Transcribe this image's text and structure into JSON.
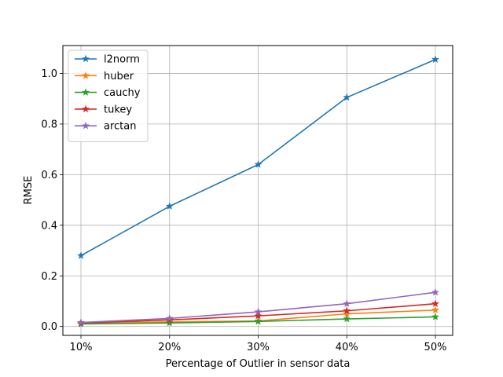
{
  "chart_data": {
    "type": "line",
    "title": "",
    "xlabel": "Percentage of Outlier in sensor data",
    "ylabel": "RMSE",
    "categories": [
      "10%",
      "20%",
      "30%",
      "40%",
      "50%"
    ],
    "ylim": [
      -0.035,
      1.11
    ],
    "yticks": [
      0.0,
      0.2,
      0.4,
      0.6,
      0.8,
      1.0
    ],
    "ytick_labels": [
      "0.0",
      "0.2",
      "0.4",
      "0.6",
      "0.8",
      "1.0"
    ],
    "grid": true,
    "legend_position": "top-left",
    "marker": "star",
    "series": [
      {
        "name": "l2norm",
        "color": "#1f77b4",
        "values": [
          0.28,
          0.475,
          0.64,
          0.905,
          1.055
        ]
      },
      {
        "name": "huber",
        "color": "#ff7f0e",
        "values": [
          0.015,
          0.018,
          0.022,
          0.05,
          0.065
        ]
      },
      {
        "name": "cauchy",
        "color": "#2ca02c",
        "values": [
          0.01,
          0.014,
          0.02,
          0.03,
          0.038
        ]
      },
      {
        "name": "tukey",
        "color": "#d62728",
        "values": [
          0.014,
          0.026,
          0.042,
          0.062,
          0.09
        ]
      },
      {
        "name": "arctan",
        "color": "#9467bd",
        "values": [
          0.016,
          0.032,
          0.058,
          0.09,
          0.135
        ]
      }
    ]
  }
}
